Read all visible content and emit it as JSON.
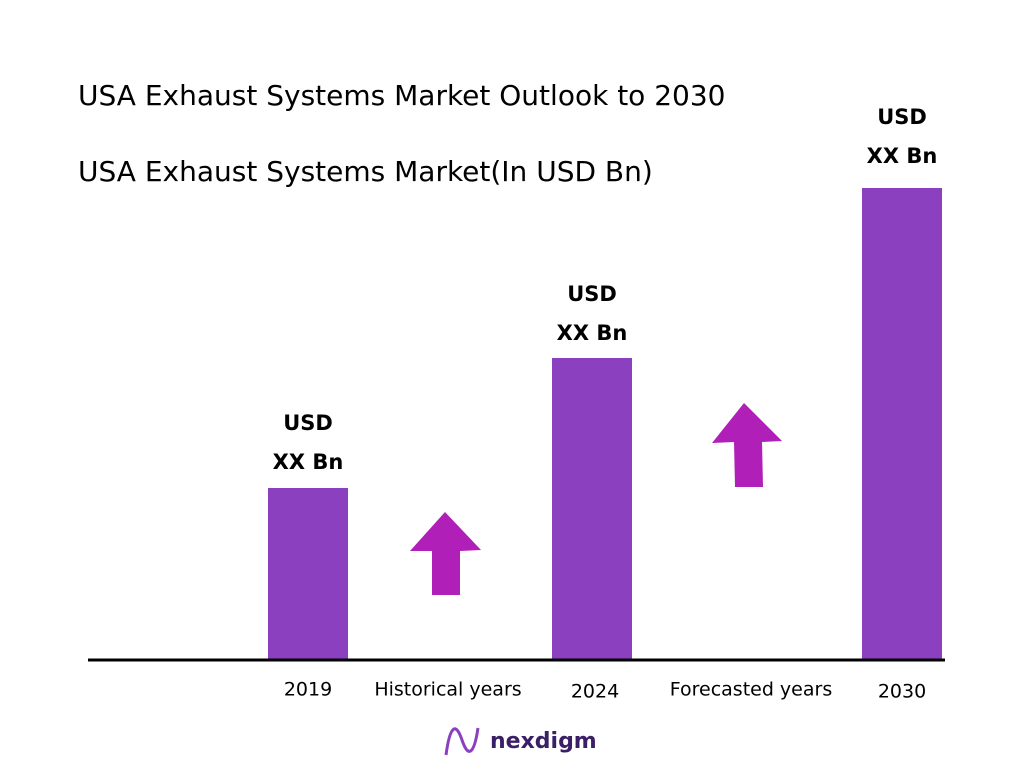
{
  "header": {
    "title": "USA Exhaust Systems Market Outlook to 2030",
    "subtitle": "USA Exhaust Systems Market(In USD Bn)"
  },
  "bars": [
    {
      "year": "2019",
      "label_lines": [
        "USD",
        "XX Bn"
      ]
    },
    {
      "year": "2024",
      "label_lines": [
        "USD",
        "XX Bn"
      ]
    },
    {
      "year": "2030",
      "label_lines": [
        "USD",
        "XX Bn"
      ]
    }
  ],
  "periods": [
    "Historical years",
    "Forecasted years"
  ],
  "footer": {
    "brand": "nexdigm"
  }
}
